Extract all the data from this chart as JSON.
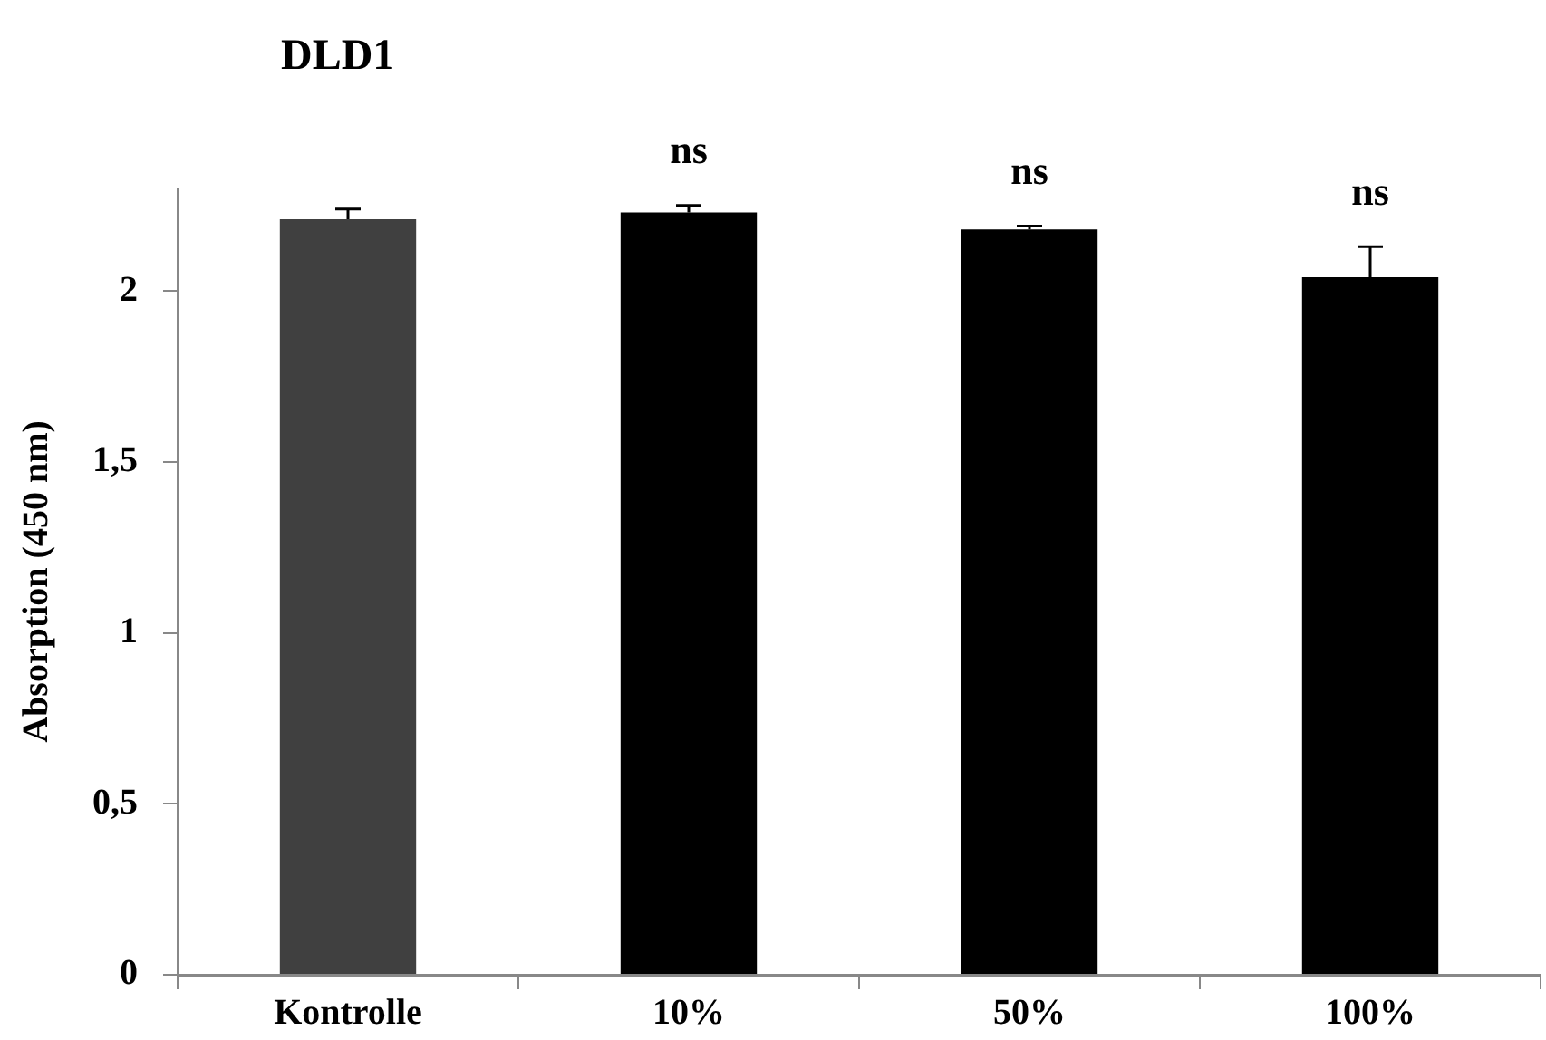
{
  "chart_data": {
    "type": "bar",
    "title": "DLD1",
    "ylabel": "Absorption (450 nm)",
    "categories": [
      "Kontrolle",
      "10%",
      "50%",
      "100%"
    ],
    "values": [
      2.21,
      2.23,
      2.18,
      2.04
    ],
    "colors": [
      "#404040",
      "#000000",
      "#000000",
      "#000000"
    ],
    "errors": [
      [
        2.21,
        2.24
      ],
      [
        2.23,
        2.25
      ],
      [
        2.18,
        2.19
      ],
      [
        2.04,
        2.13
      ]
    ],
    "ylim": [
      0,
      2.3
    ],
    "yticks": [
      0,
      {
        "value": 0.5,
        "label": "0,5"
      },
      1,
      {
        "value": 1.5,
        "label": "1,5"
      },
      2
    ],
    "grid": false,
    "legend": false,
    "annotations": [
      "ns",
      "ns",
      "ns"
    ]
  }
}
